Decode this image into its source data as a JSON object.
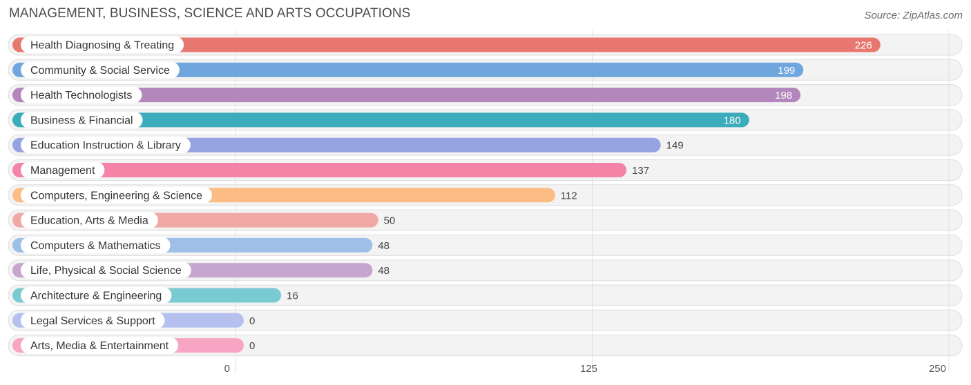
{
  "chart_data": {
    "type": "bar",
    "orientation": "horizontal",
    "title": "MANAGEMENT, BUSINESS, SCIENCE AND ARTS OCCUPATIONS",
    "source": "Source: ZipAtlas.com",
    "categories": [
      "Health Diagnosing & Treating",
      "Community & Social Service",
      "Health Technologists",
      "Business & Financial",
      "Education Instruction & Library",
      "Management",
      "Computers, Engineering & Science",
      "Education, Arts & Media",
      "Computers & Mathematics",
      "Life, Physical & Social Science",
      "Architecture & Engineering",
      "Legal Services & Support",
      "Arts, Media & Entertainment"
    ],
    "values": [
      226,
      199,
      198,
      180,
      149,
      137,
      112,
      50,
      48,
      48,
      16,
      0,
      0
    ],
    "value_labels": [
      "226",
      "199",
      "198",
      "180",
      "149",
      "137",
      "112",
      "50",
      "48",
      "48",
      "16",
      "0",
      "0"
    ],
    "colors": [
      "#e8786f",
      "#6fa6de",
      "#b386bc",
      "#3aacbb",
      "#96a3e3",
      "#f483a7",
      "#fbbd83",
      "#f0a8a4",
      "#9ebfe8",
      "#c6a6ce",
      "#79cbd2",
      "#b6c0ef",
      "#f6a6c2"
    ],
    "xlim": [
      0,
      250
    ],
    "xticks": [
      0,
      125,
      250
    ],
    "xtick_labels": [
      "0",
      "125",
      "250"
    ],
    "xlabel": "",
    "ylabel": "",
    "grid": true,
    "legend": "none"
  }
}
